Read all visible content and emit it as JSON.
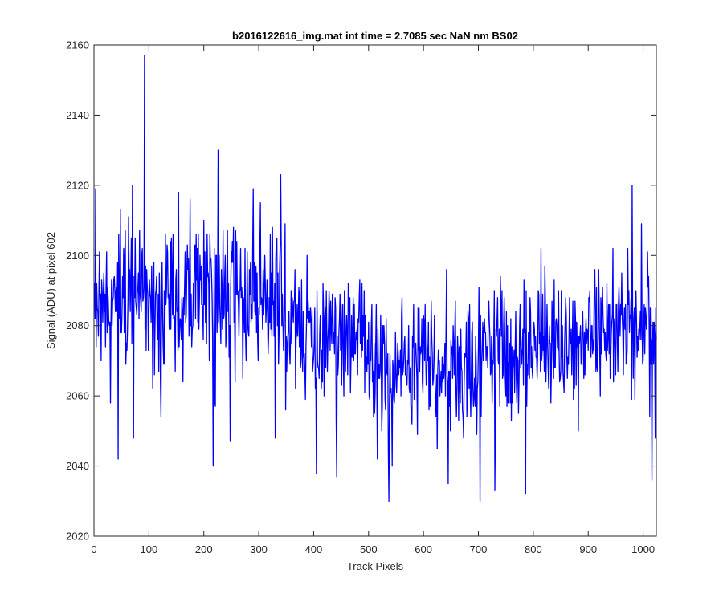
{
  "chart_data": {
    "type": "line",
    "title": "b2016122616_img.mat int time = 2.7085 sec  NaN nm BS02",
    "xlabel": "Track Pixels",
    "ylabel": "Signal (ADU) at pixel 602",
    "xlim": [
      0,
      1024
    ],
    "ylim": [
      2020,
      2160
    ],
    "xticks": [
      0,
      100,
      200,
      300,
      400,
      500,
      600,
      700,
      800,
      900,
      1000
    ],
    "yticks": [
      2020,
      2040,
      2060,
      2080,
      2100,
      2120,
      2140,
      2160
    ],
    "grid": false,
    "line_color": "#0000ff",
    "axis_color": "#262626",
    "x_start": 1,
    "x_step": 1,
    "n_points": 1024,
    "segment_means": [
      {
        "x_end": 100,
        "mean": 2087,
        "noise": 11
      },
      {
        "x_end": 350,
        "mean": 2088,
        "noise": 12
      },
      {
        "x_end": 500,
        "mean": 2077,
        "noise": 11
      },
      {
        "x_end": 700,
        "mean": 2068,
        "noise": 11
      },
      {
        "x_end": 900,
        "mean": 2074,
        "noise": 11
      },
      {
        "x_end": 1024,
        "mean": 2080,
        "noise": 11
      }
    ],
    "values_min": 2030,
    "values_max": 2157,
    "series": [
      {
        "name": "signal",
        "notable_points": [
          {
            "x": 1,
            "y": 2092
          },
          {
            "x": 3,
            "y": 2119
          },
          {
            "x": 6,
            "y": 2085
          },
          {
            "x": 13,
            "y": 2070
          },
          {
            "x": 30,
            "y": 2058
          },
          {
            "x": 44,
            "y": 2042
          },
          {
            "x": 63,
            "y": 2111
          },
          {
            "x": 70,
            "y": 2120
          },
          {
            "x": 72,
            "y": 2048
          },
          {
            "x": 92,
            "y": 2157
          },
          {
            "x": 95,
            "y": 2073
          },
          {
            "x": 122,
            "y": 2054
          },
          {
            "x": 154,
            "y": 2118
          },
          {
            "x": 217,
            "y": 2040
          },
          {
            "x": 226,
            "y": 2130
          },
          {
            "x": 248,
            "y": 2047
          },
          {
            "x": 290,
            "y": 2119
          },
          {
            "x": 330,
            "y": 2048
          },
          {
            "x": 340,
            "y": 2123
          },
          {
            "x": 405,
            "y": 2038
          },
          {
            "x": 442,
            "y": 2037
          },
          {
            "x": 537,
            "y": 2030
          },
          {
            "x": 543,
            "y": 2040
          },
          {
            "x": 625,
            "y": 2045
          },
          {
            "x": 645,
            "y": 2035
          },
          {
            "x": 703,
            "y": 2030
          },
          {
            "x": 730,
            "y": 2033
          },
          {
            "x": 786,
            "y": 2032
          },
          {
            "x": 980,
            "y": 2120
          },
          {
            "x": 1016,
            "y": 2036
          },
          {
            "x": 1022,
            "y": 2048
          }
        ]
      }
    ]
  }
}
